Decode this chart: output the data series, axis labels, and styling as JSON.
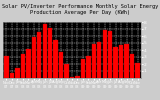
{
  "title": "Solar PV/Inverter Performance Monthly Solar Energy Production Average Per Day (KWh)",
  "values": [
    3.1,
    0.7,
    1.4,
    3.4,
    4.1,
    5.9,
    6.6,
    7.7,
    7.1,
    5.4,
    3.7,
    2.0,
    0.2,
    0.3,
    2.7,
    3.1,
    4.9,
    5.1,
    6.9,
    6.7,
    4.4,
    4.7,
    4.8,
    3.4,
    2.1
  ],
  "bar_color": "#ff0000",
  "bg_color": "#000000",
  "plot_bg": "#000000",
  "fig_bg": "#cccccc",
  "grid_color": "#ffffff",
  "text_color": "#ffffff",
  "title_color": "#000000",
  "ylim": [
    0,
    8
  ],
  "yticks": [
    1,
    2,
    3,
    4,
    5,
    6,
    7,
    8
  ],
  "title_fontsize": 3.8,
  "tick_fontsize": 3.2,
  "labels": [
    "Nov\n07",
    "Dec\n07",
    "Jan\n08",
    "Feb\n08",
    "Mar\n08",
    "Apr\n08",
    "May\n08",
    "Jun\n08",
    "Jul\n08",
    "Aug\n08",
    "Sep\n08",
    "Oct\n08",
    "Nov\n08",
    "Dec\n08",
    "Jan\n09",
    "Feb\n09",
    "Mar\n09",
    "Apr\n09",
    "May\n09",
    "Jun\n09",
    "Jul\n09",
    "Aug\n09",
    "Sep\n09",
    "Oct\n09",
    "Nov\n09"
  ]
}
